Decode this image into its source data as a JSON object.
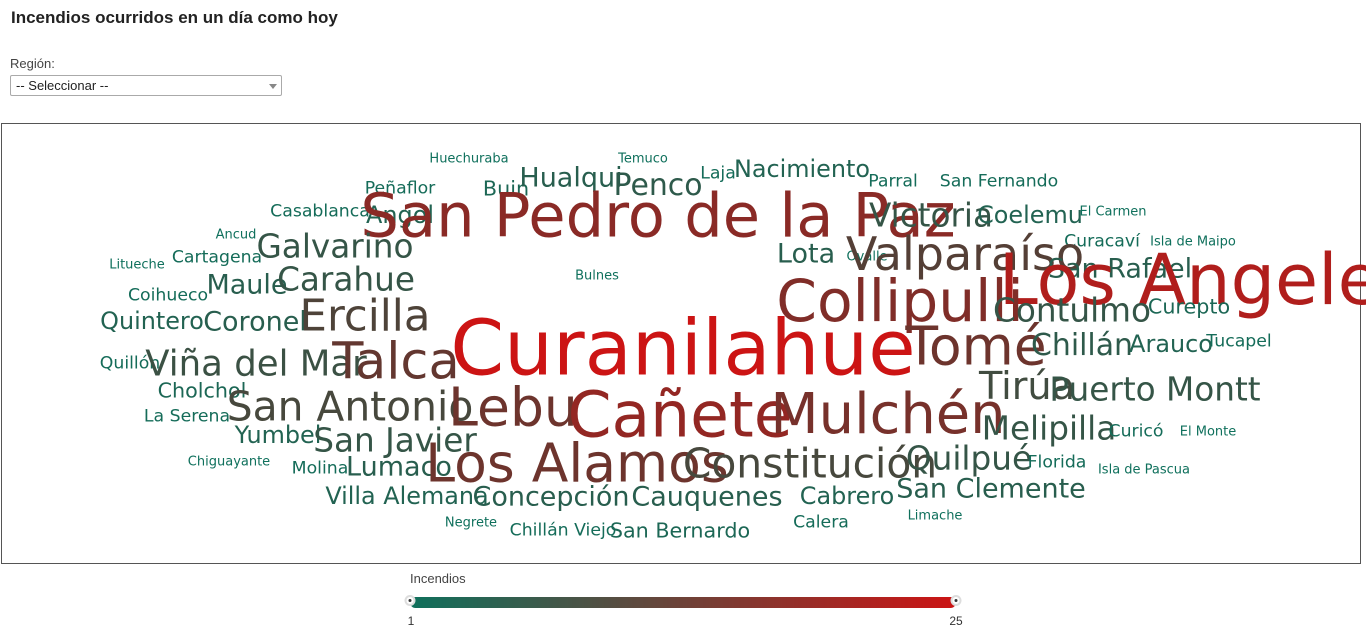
{
  "title": "Incendios ocurridos en un día como hoy",
  "filter": {
    "label": "Región:",
    "selected": "-- Seleccionar --"
  },
  "legend": {
    "title": "Incendios",
    "min": "1",
    "max": "25",
    "min_value": 1,
    "max_value": 25
  },
  "colors": {
    "low": "#0f705c",
    "high": "#cc1414"
  },
  "words": [
    {
      "text": "Huechuraba",
      "weight": 1
    },
    {
      "text": "Temuco",
      "weight": 1
    },
    {
      "text": "Laja",
      "weight": 2
    },
    {
      "text": "Nacimiento",
      "weight": 4
    },
    {
      "text": "Peñaflor",
      "weight": 2
    },
    {
      "text": "Buin",
      "weight": 3
    },
    {
      "text": "Hualqui",
      "weight": 5
    },
    {
      "text": "Penco",
      "weight": 6
    },
    {
      "text": "Parral",
      "weight": 2
    },
    {
      "text": "San Fernando",
      "weight": 2
    },
    {
      "text": "Casablanca",
      "weight": 2
    },
    {
      "text": "Angol",
      "weight": 4
    },
    {
      "text": "San Pedro de la Paz",
      "weight": 18
    },
    {
      "text": "Victoria",
      "weight": 7
    },
    {
      "text": "Coelemu",
      "weight": 4
    },
    {
      "text": "El Carmen",
      "weight": 1
    },
    {
      "text": "Ancud",
      "weight": 1
    },
    {
      "text": "Galvarino",
      "weight": 7
    },
    {
      "text": "Curacaví",
      "weight": 2
    },
    {
      "text": "Isla de Maipo",
      "weight": 1
    },
    {
      "text": "Litueche",
      "weight": 1
    },
    {
      "text": "Cartagena",
      "weight": 2
    },
    {
      "text": "Lota",
      "weight": 5
    },
    {
      "text": "Ovalle",
      "weight": 1
    },
    {
      "text": "Valparaíso",
      "weight": 12
    },
    {
      "text": "San Rafael",
      "weight": 5
    },
    {
      "text": "Los Angeles",
      "weight": 22
    },
    {
      "text": "Bulnes",
      "weight": 1
    },
    {
      "text": "Maule",
      "weight": 5
    },
    {
      "text": "Carahue",
      "weight": 7
    },
    {
      "text": "Coihueco",
      "weight": 2
    },
    {
      "text": "Collipulli",
      "weight": 17
    },
    {
      "text": "Curepto",
      "weight": 3
    },
    {
      "text": "Quintero",
      "weight": 4
    },
    {
      "text": "Coronel",
      "weight": 5
    },
    {
      "text": "Ercilla",
      "weight": 11
    },
    {
      "text": "Contulmo",
      "weight": 7
    },
    {
      "text": "Tomé",
      "weight": 15
    },
    {
      "text": "Chillán",
      "weight": 6
    },
    {
      "text": "Arauco",
      "weight": 4
    },
    {
      "text": "Tucapel",
      "weight": 2
    },
    {
      "text": "Quillón",
      "weight": 2
    },
    {
      "text": "Viña del Mar",
      "weight": 8
    },
    {
      "text": "Talca",
      "weight": 14
    },
    {
      "text": "Curanilahue",
      "weight": 25
    },
    {
      "text": "Cholchol",
      "weight": 3
    },
    {
      "text": "Tirúa",
      "weight": 9
    },
    {
      "text": "Puerto Montt",
      "weight": 7
    },
    {
      "text": "La Serena",
      "weight": 2
    },
    {
      "text": "San Antonio",
      "weight": 10
    },
    {
      "text": "Lebu",
      "weight": 15
    },
    {
      "text": "Cañete",
      "weight": 19
    },
    {
      "text": "Mulchén",
      "weight": 16
    },
    {
      "text": "Yumbel",
      "weight": 4
    },
    {
      "text": "San Javier",
      "weight": 7
    },
    {
      "text": "Melipilla",
      "weight": 7
    },
    {
      "text": "Curicó",
      "weight": 2
    },
    {
      "text": "El Monte",
      "weight": 1
    },
    {
      "text": "Chiguayante",
      "weight": 1
    },
    {
      "text": "Molina",
      "weight": 2
    },
    {
      "text": "Lumaco",
      "weight": 5
    },
    {
      "text": "Los Alamos",
      "weight": 15
    },
    {
      "text": "Constitución",
      "weight": 10
    },
    {
      "text": "Quilpué",
      "weight": 7
    },
    {
      "text": "Florida",
      "weight": 2
    },
    {
      "text": "Isla de Pascua",
      "weight": 1
    },
    {
      "text": "San Clemente",
      "weight": 5
    },
    {
      "text": "Villa Alemana",
      "weight": 4
    },
    {
      "text": "Concepción",
      "weight": 5
    },
    {
      "text": "Cauquenes",
      "weight": 5
    },
    {
      "text": "Cabrero",
      "weight": 4
    },
    {
      "text": "Negrete",
      "weight": 1
    },
    {
      "text": "Chillán Viejo",
      "weight": 2
    },
    {
      "text": "San Bernardo",
      "weight": 3
    },
    {
      "text": "Calera",
      "weight": 2
    },
    {
      "text": "Limache",
      "weight": 1
    }
  ]
}
